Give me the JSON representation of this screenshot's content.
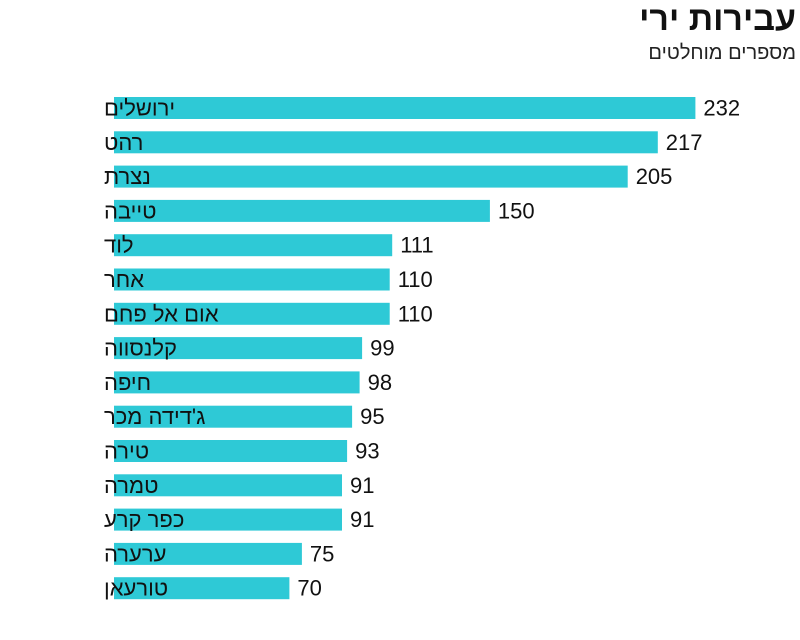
{
  "chart_data": {
    "type": "bar",
    "orientation": "horizontal",
    "title": "עבירות ירי",
    "subtitle": "מספרים מוחלטים",
    "categories": [
      "ירושלים",
      "רהט",
      "נצרת",
      "טייבה",
      "לוד",
      "אחר",
      "אום אל פחם",
      "קלנסווה",
      "חיפה",
      "ג'דידה מכר",
      "טירה",
      "טמרה",
      "כפר קרע",
      "ערערה",
      "טורעאן"
    ],
    "values": [
      232,
      217,
      205,
      150,
      111,
      110,
      110,
      99,
      98,
      95,
      93,
      91,
      91,
      75,
      70
    ],
    "bar_color": "#2ec9d6",
    "grid": false,
    "legend": "none"
  }
}
